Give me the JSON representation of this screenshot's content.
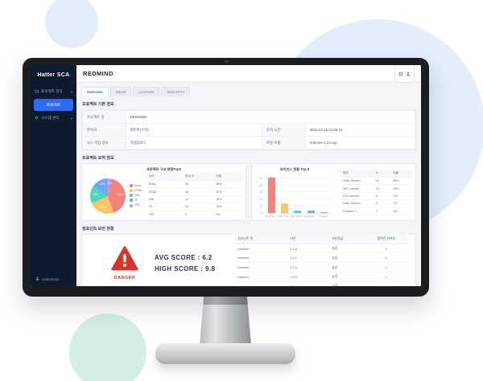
{
  "colors": {
    "accent": "#2e6bf6",
    "sidebar_bg": "#0c1b30",
    "danger": "#d9342b",
    "palette": [
      "#f4837d",
      "#f9c46b",
      "#4ed6c3",
      "#6fa8f5",
      "#b59df0"
    ]
  },
  "sidebar": {
    "logo": "Hatter SCA",
    "items": [
      {
        "label": "프로젝트 관리",
        "icon": "folder-icon"
      },
      {
        "label": "프로젝트",
        "active": true
      },
      {
        "label": "시스템 관리",
        "icon": "gear-icon"
      }
    ],
    "user": "codemind1"
  },
  "header": {
    "title": "REDMIND"
  },
  "tabs": {
    "items": [
      {
        "label": "Overview",
        "active": true
      },
      {
        "label": "SBOM"
      },
      {
        "label": "LICENSE"
      },
      {
        "label": "SECURITY"
      }
    ]
  },
  "basic_info": {
    "title": "프로젝트 기본 정보",
    "project_label": "프로젝트 명",
    "project": "REDMIND",
    "analyst_label": "분석자",
    "analyst": "최민아(수석)",
    "time_label": "분석 시간",
    "time": "2022-04-15 04:08:15",
    "source_label": "소스 저장 정보",
    "source": "직접업로드",
    "file_label": "파일 이름",
    "file": "redmine-4.2.5.zip"
  },
  "summary": {
    "title": "프로젝트 요약 정보",
    "composition": {
      "title": "프로젝트 구성 현황Top5",
      "table": {
        "headers": [
          "언어",
          "파일 수",
          "비율"
        ],
        "rows": [
          [
            "Ruby",
            "28",
            "38%"
          ],
          [
            "HTML",
            "18",
            "22%"
          ],
          [
            "XML",
            "12",
            "15%"
          ],
          [
            "JS",
            "12",
            "14%"
          ],
          [
            "기타",
            "2",
            "3%"
          ]
        ]
      }
    },
    "license": {
      "title": "라이선스 현황 Top 5",
      "table": {
        "headers": [
          "명칭",
          "수",
          "비율"
        ],
        "rows": [
          [
            "GNU Genera...",
            "51",
            "65%"
          ],
          [
            "MIT License",
            "14",
            "18%"
          ],
          [
            "X11 License",
            "3",
            "7%"
          ],
          [
            "GNU Genera...",
            "3",
            "7%"
          ],
          [
            "Creative C...",
            "1",
            "1%"
          ]
        ]
      }
    }
  },
  "security": {
    "title": "컴포넌트 보안 현황",
    "danger_label": "DANGER",
    "avg_score": "AVG SCORE : 6.2",
    "high_score": "HIGH SCORE : 9.8",
    "table": {
      "headers": [
        "컴포넌트 명",
        "버전",
        "보안등급",
        "알려진 취약점"
      ],
      "rows": [
        [
          "redmine",
          "2.1.4",
          "높음",
          "⚠"
        ],
        [
          "redmine",
          "2.1.2",
          "높음",
          "⚠"
        ],
        [
          "redmine",
          "2.2.0",
          "높음",
          "⚠"
        ],
        [
          "redmine",
          "2.3.0",
          "높음",
          "⚠"
        ],
        [
          "redmine",
          "2.2.4",
          "높음",
          "⚠"
        ]
      ]
    }
  },
  "chart_data": [
    {
      "type": "pie",
      "title": "프로젝트 구성 현황Top5",
      "labels": [
        "Ruby",
        "HTML",
        "XML",
        "JS",
        "기타"
      ],
      "values": [
        38,
        22,
        15,
        14,
        3
      ],
      "colors": [
        "#f4837d",
        "#f9c46b",
        "#4ed6c3",
        "#6fa8f5",
        "#b59df0"
      ],
      "legend_position": "right",
      "start_angle_deg": 12
    },
    {
      "type": "bar",
      "title": "라이선스 현황 Top 5",
      "categories": [
        "GNU Gener...",
        "MIT Licen...",
        "X11 Licen...",
        "GNU Gener...",
        "Creativ..."
      ],
      "values": [
        51,
        14,
        3,
        3,
        1
      ],
      "colors": [
        "#f4837d",
        "#f9c46b",
        "#4ed6c3",
        "#6fa8f5",
        "#b59df0"
      ],
      "ylim": [
        0,
        55
      ],
      "yticks": [
        0,
        10,
        20,
        30,
        40,
        50
      ],
      "grid": true,
      "xlabel": "",
      "ylabel": ""
    }
  ]
}
